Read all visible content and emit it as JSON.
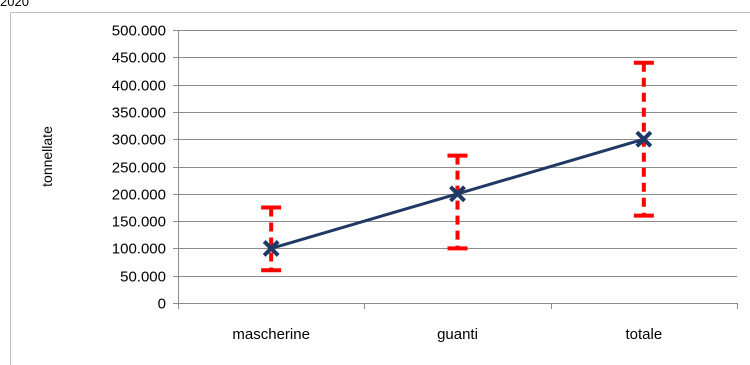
{
  "caption_fragment": "2020",
  "chart_data": {
    "type": "line",
    "title": "",
    "xlabel": "",
    "ylabel": "tonnellate",
    "categories": [
      "mascherine",
      "guanti",
      "totale"
    ],
    "series": [
      {
        "values": [
          100000,
          200000,
          300000
        ],
        "error_low": [
          60000,
          100000,
          160000
        ],
        "error_high": [
          175000,
          270000,
          440000
        ],
        "color": "#1f3864",
        "error_color": "#ff0000",
        "marker": "x"
      }
    ],
    "ylim": [
      0,
      500000
    ],
    "yticks": [
      0,
      50000,
      100000,
      150000,
      200000,
      250000,
      300000,
      350000,
      400000,
      450000,
      500000
    ],
    "ytick_labels": [
      "0",
      "50.000",
      "100.000",
      "150.000",
      "200.000",
      "250.000",
      "300.000",
      "350.000",
      "400.000",
      "450.000",
      "500.000"
    ],
    "grid": true,
    "legend": "none"
  }
}
